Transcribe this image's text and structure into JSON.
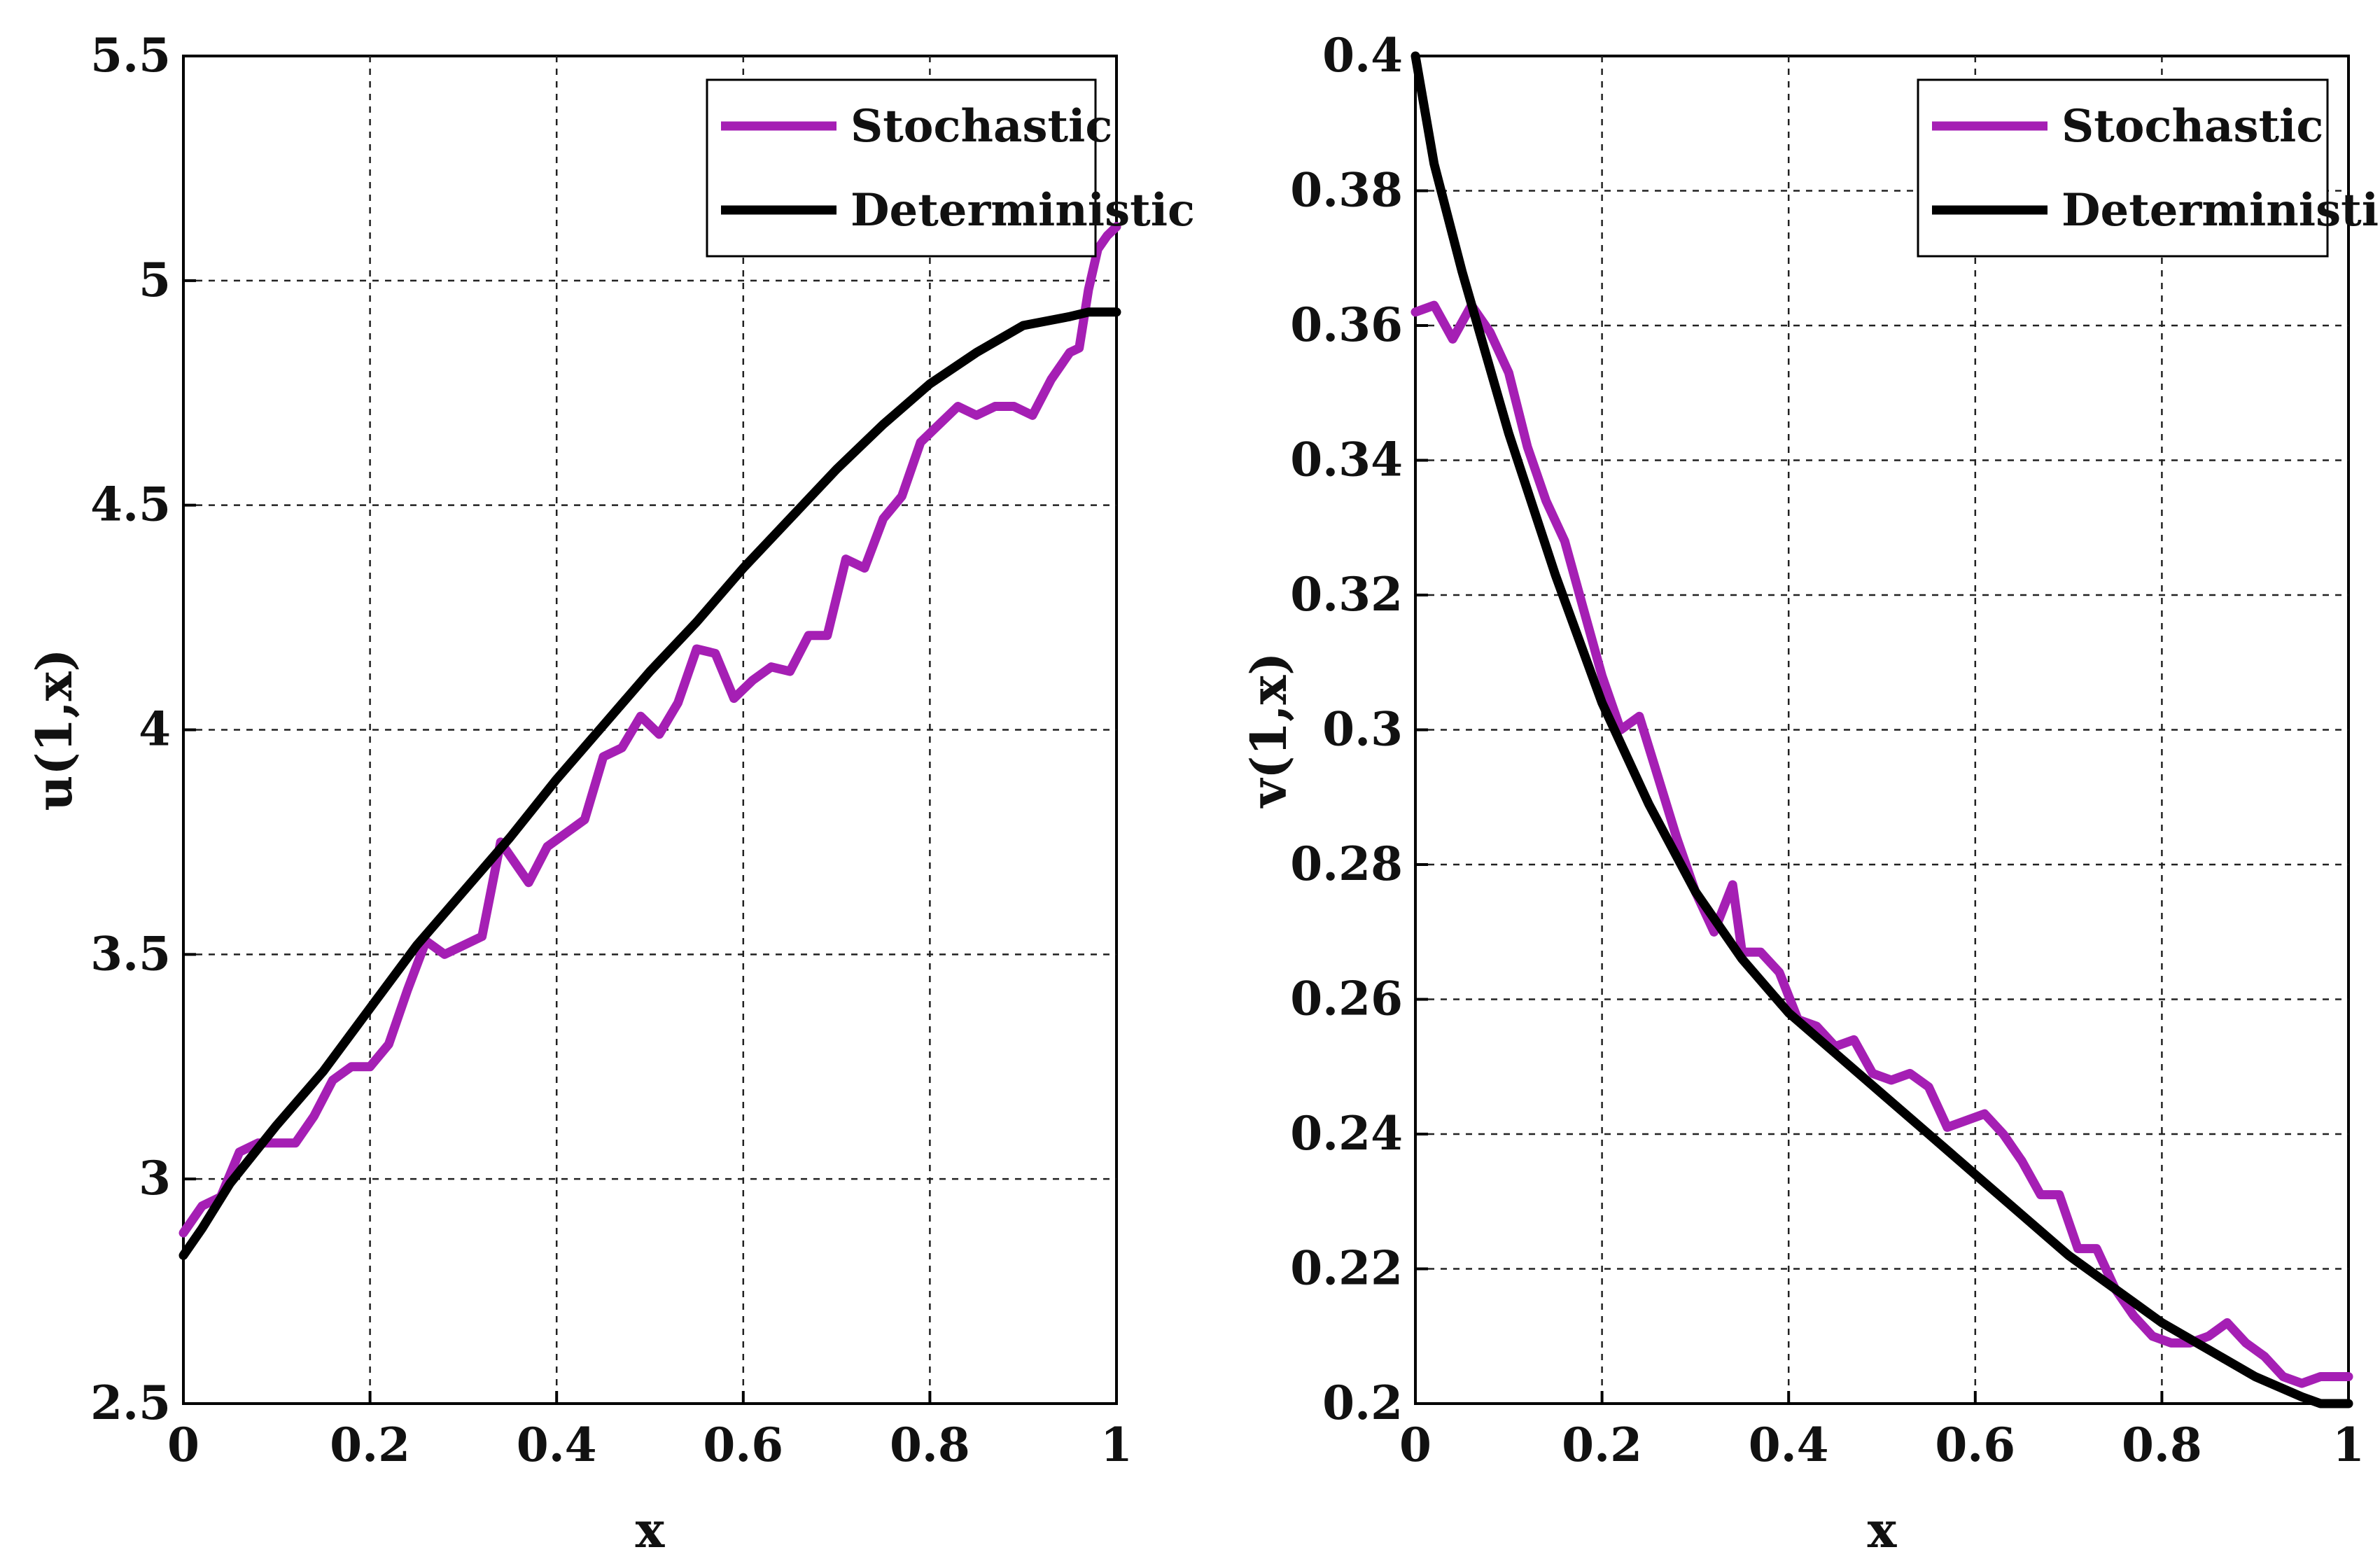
{
  "chart_data": [
    {
      "type": "line",
      "title": "",
      "xlabel": "x",
      "ylabel": "u(1,x)",
      "xlim": [
        0,
        1
      ],
      "ylim": [
        2.5,
        5.5
      ],
      "grid": true,
      "legend_position": "top-right",
      "x_ticks": [
        "0",
        "0.2",
        "0.4",
        "0.6",
        "0.8",
        "1"
      ],
      "y_ticks": [
        "2.5",
        "3",
        "3.5",
        "4",
        "4.5",
        "5",
        "5.5"
      ],
      "series": [
        {
          "name": "Stochastic",
          "color": "#a51fb4",
          "x": [
            0,
            0.02,
            0.04,
            0.06,
            0.08,
            0.1,
            0.12,
            0.14,
            0.16,
            0.18,
            0.2,
            0.22,
            0.24,
            0.26,
            0.28,
            0.3,
            0.32,
            0.34,
            0.35,
            0.37,
            0.39,
            0.41,
            0.43,
            0.45,
            0.47,
            0.49,
            0.51,
            0.53,
            0.55,
            0.57,
            0.59,
            0.61,
            0.63,
            0.65,
            0.67,
            0.69,
            0.71,
            0.73,
            0.75,
            0.77,
            0.79,
            0.81,
            0.83,
            0.85,
            0.87,
            0.89,
            0.91,
            0.93,
            0.95,
            0.96,
            0.97,
            0.98,
            0.99,
            1.0
          ],
          "y": [
            2.88,
            2.94,
            2.96,
            3.06,
            3.08,
            3.08,
            3.08,
            3.14,
            3.22,
            3.25,
            3.25,
            3.3,
            3.42,
            3.53,
            3.5,
            3.52,
            3.54,
            3.75,
            3.72,
            3.66,
            3.74,
            3.77,
            3.8,
            3.94,
            3.96,
            4.03,
            3.99,
            4.06,
            4.18,
            4.17,
            4.07,
            4.11,
            4.14,
            4.13,
            4.21,
            4.21,
            4.38,
            4.36,
            4.47,
            4.52,
            4.64,
            4.68,
            4.72,
            4.7,
            4.72,
            4.72,
            4.7,
            4.78,
            4.84,
            4.85,
            4.98,
            5.07,
            5.1,
            5.12
          ]
        },
        {
          "name": "Deterministic",
          "color": "#000000",
          "x": [
            0,
            0.02,
            0.05,
            0.1,
            0.15,
            0.2,
            0.25,
            0.3,
            0.35,
            0.4,
            0.45,
            0.5,
            0.55,
            0.6,
            0.65,
            0.7,
            0.75,
            0.8,
            0.85,
            0.9,
            0.95,
            0.97,
            1.0
          ],
          "y": [
            2.83,
            2.89,
            2.99,
            3.12,
            3.24,
            3.38,
            3.52,
            3.64,
            3.76,
            3.89,
            4.01,
            4.13,
            4.24,
            4.36,
            4.47,
            4.58,
            4.68,
            4.77,
            4.84,
            4.9,
            4.92,
            4.93,
            4.93
          ]
        }
      ]
    },
    {
      "type": "line",
      "title": "",
      "xlabel": "x",
      "ylabel": "v(1,x)",
      "xlim": [
        0,
        1
      ],
      "ylim": [
        0.2,
        0.4
      ],
      "grid": true,
      "legend_position": "top-right",
      "x_ticks": [
        "0",
        "0.2",
        "0.4",
        "0.6",
        "0.8",
        "1"
      ],
      "y_ticks": [
        "0.2",
        "0.22",
        "0.24",
        "0.26",
        "0.28",
        "0.3",
        "0.32",
        "0.34",
        "0.36",
        "0.38",
        "0.4"
      ],
      "series": [
        {
          "name": "Stochastic",
          "color": "#a51fb4",
          "x": [
            0,
            0.02,
            0.04,
            0.06,
            0.08,
            0.1,
            0.12,
            0.14,
            0.16,
            0.18,
            0.2,
            0.22,
            0.24,
            0.26,
            0.28,
            0.3,
            0.32,
            0.34,
            0.35,
            0.37,
            0.39,
            0.41,
            0.43,
            0.45,
            0.47,
            0.49,
            0.51,
            0.53,
            0.55,
            0.57,
            0.59,
            0.61,
            0.63,
            0.65,
            0.67,
            0.69,
            0.71,
            0.73,
            0.75,
            0.77,
            0.79,
            0.81,
            0.83,
            0.85,
            0.87,
            0.89,
            0.91,
            0.93,
            0.95,
            0.97,
            0.99,
            1.0
          ],
          "y": [
            0.362,
            0.363,
            0.358,
            0.363,
            0.359,
            0.353,
            0.342,
            0.334,
            0.328,
            0.318,
            0.308,
            0.3,
            0.302,
            0.293,
            0.284,
            0.276,
            0.27,
            0.277,
            0.267,
            0.267,
            0.264,
            0.257,
            0.256,
            0.253,
            0.254,
            0.249,
            0.248,
            0.249,
            0.247,
            0.241,
            0.242,
            0.243,
            0.24,
            0.236,
            0.231,
            0.231,
            0.223,
            0.223,
            0.217,
            0.213,
            0.21,
            0.209,
            0.209,
            0.21,
            0.212,
            0.209,
            0.207,
            0.204,
            0.203,
            0.204,
            0.204,
            0.204
          ]
        },
        {
          "name": "Deterministic",
          "color": "#000000",
          "x": [
            0,
            0.02,
            0.05,
            0.1,
            0.15,
            0.2,
            0.25,
            0.3,
            0.35,
            0.4,
            0.45,
            0.5,
            0.55,
            0.6,
            0.65,
            0.7,
            0.75,
            0.8,
            0.85,
            0.9,
            0.95,
            0.97,
            1.0
          ],
          "y": [
            0.4,
            0.384,
            0.368,
            0.344,
            0.323,
            0.304,
            0.289,
            0.276,
            0.266,
            0.258,
            0.252,
            0.246,
            0.24,
            0.234,
            0.228,
            0.222,
            0.217,
            0.212,
            0.208,
            0.204,
            0.201,
            0.2,
            0.2
          ]
        }
      ]
    }
  ]
}
